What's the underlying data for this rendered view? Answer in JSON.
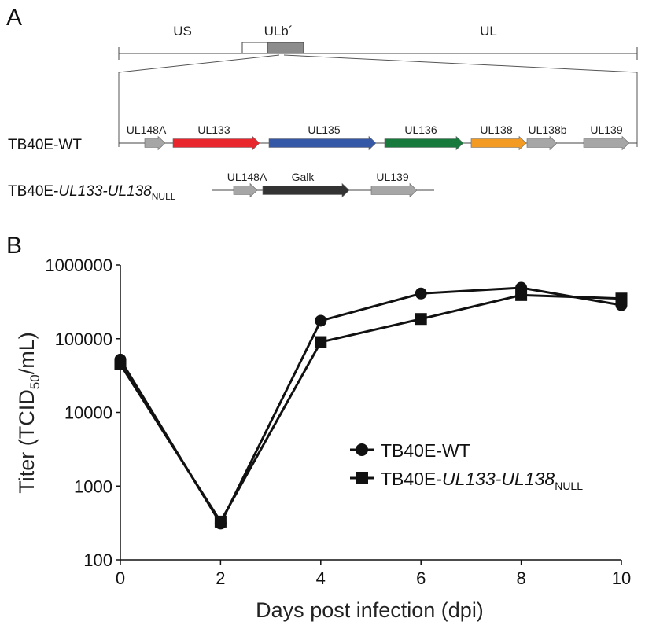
{
  "panel_a": {
    "label": "A",
    "genome": {
      "us_label": "US",
      "ulb_label": "ULb´",
      "ul_label": "UL"
    },
    "wt": {
      "name": "TB40E-WT",
      "genes": [
        {
          "label": "UL148A",
          "color": "#a6a6a6"
        },
        {
          "label": "UL133",
          "color": "#e8262c"
        },
        {
          "label": "UL135",
          "color": "#3457a6"
        },
        {
          "label": "UL136",
          "color": "#177a3c"
        },
        {
          "label": "UL138",
          "color": "#f39a22"
        },
        {
          "label": "UL138b",
          "color": "#a6a6a6"
        },
        {
          "label": "UL139",
          "color": "#a6a6a6"
        }
      ]
    },
    "null": {
      "name_prefix": "TB40E-",
      "name_italic": "UL133-UL138",
      "name_sub": "NULL",
      "genes": [
        {
          "label": "UL148A",
          "color": "#a6a6a6"
        },
        {
          "label": "Galk",
          "color": "#333333"
        },
        {
          "label": "UL139",
          "color": "#a6a6a6"
        }
      ]
    }
  },
  "panel_b": {
    "label": "B"
  },
  "chart_data": {
    "type": "line",
    "title": "",
    "xlabel": "Days post infection (dpi)",
    "ylabel_prefix": "Titer (TCID",
    "ylabel_sub": "50",
    "ylabel_suffix": "/mL)",
    "yscale": "log",
    "xlim": [
      0,
      10
    ],
    "ylim": [
      100,
      1000000
    ],
    "x_ticks": [
      "0",
      "2",
      "4",
      "6",
      "8",
      "10"
    ],
    "y_ticks": [
      "100",
      "1000",
      "10000",
      "100000",
      "1000000"
    ],
    "x": [
      0,
      2,
      4,
      6,
      8,
      10
    ],
    "grid": false,
    "legend_position": "right-middle",
    "series": [
      {
        "name": "TB40E-WT",
        "marker": "circle",
        "values": [
          52000,
          310,
          175000,
          410000,
          490000,
          285000
        ]
      },
      {
        "name_prefix": "TB40E-",
        "name_italic": "UL133-UL138",
        "name_sub": "NULL",
        "marker": "square",
        "values": [
          45000,
          330,
          90000,
          185000,
          390000,
          350000
        ]
      }
    ]
  }
}
